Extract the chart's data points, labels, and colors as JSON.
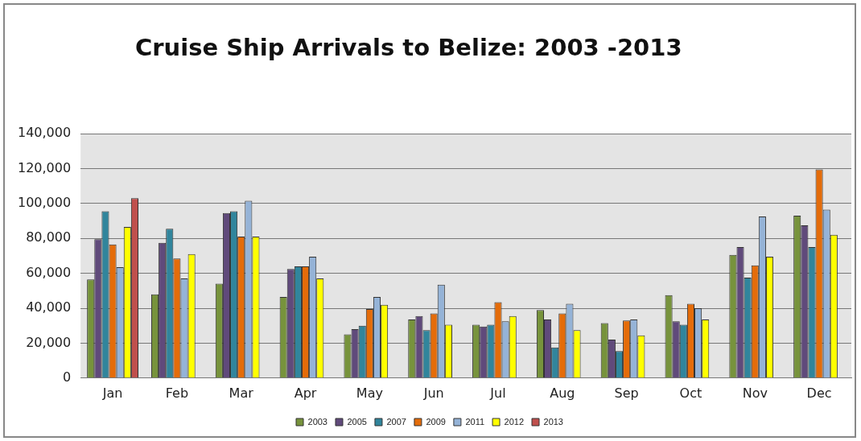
{
  "chart_data": {
    "type": "bar",
    "title": "Cruise Ship Arrivals to Belize: 2003 -2013",
    "categories": [
      "Jan",
      "Feb",
      "Mar",
      "Apr",
      "May",
      "Jun",
      "Jul",
      "Aug",
      "Sep",
      "Oct",
      "Nov",
      "Dec"
    ],
    "series": [
      {
        "name": "2003",
        "color": "#77933c",
        "values": [
          56500,
          48000,
          54000,
          46500,
          25000,
          33500,
          30500,
          39000,
          31500,
          47500,
          70500,
          93000
        ]
      },
      {
        "name": "2005",
        "color": "#604a7b",
        "values": [
          79500,
          77500,
          94500,
          62500,
          28000,
          35500,
          29500,
          33500,
          22000,
          32500,
          75000,
          87500
        ]
      },
      {
        "name": "2007",
        "color": "#31859c",
        "values": [
          95500,
          85500,
          95500,
          64000,
          30000,
          27500,
          30500,
          17500,
          15500,
          30500,
          57500,
          75000
        ]
      },
      {
        "name": "2009",
        "color": "#e46c0a",
        "values": [
          76500,
          68500,
          81000,
          64000,
          39500,
          37000,
          43500,
          37000,
          33000,
          42500,
          64500,
          119500
        ]
      },
      {
        "name": "2011",
        "color": "#95b3d7",
        "values": [
          63500,
          57000,
          101500,
          69500,
          46500,
          53500,
          32500,
          42500,
          33500,
          40000,
          92500,
          96500
        ]
      },
      {
        "name": "2012",
        "color": "#ffff00",
        "values": [
          86500,
          71000,
          81000,
          57000,
          42000,
          30500,
          35500,
          27500,
          24500,
          33500,
          69500,
          82000
        ]
      },
      {
        "name": "2013",
        "color": "#c0504d",
        "values": [
          103000,
          null,
          null,
          null,
          null,
          null,
          null,
          null,
          null,
          null,
          null,
          null
        ]
      }
    ],
    "ylim": [
      0,
      140000
    ],
    "yticks": [
      0,
      {
        "value": 20000,
        "label": "20,000"
      },
      {
        "value": 40000,
        "label": "40,000"
      },
      {
        "value": 60000,
        "label": "60,000"
      },
      {
        "value": 80000,
        "label": "80,000"
      },
      {
        "value": 100000,
        "label": "100,000"
      },
      {
        "value": 120000,
        "label": "120,000"
      },
      {
        "value": 140000,
        "label": "140,000"
      }
    ],
    "grid": "y",
    "legend": "bottom"
  }
}
